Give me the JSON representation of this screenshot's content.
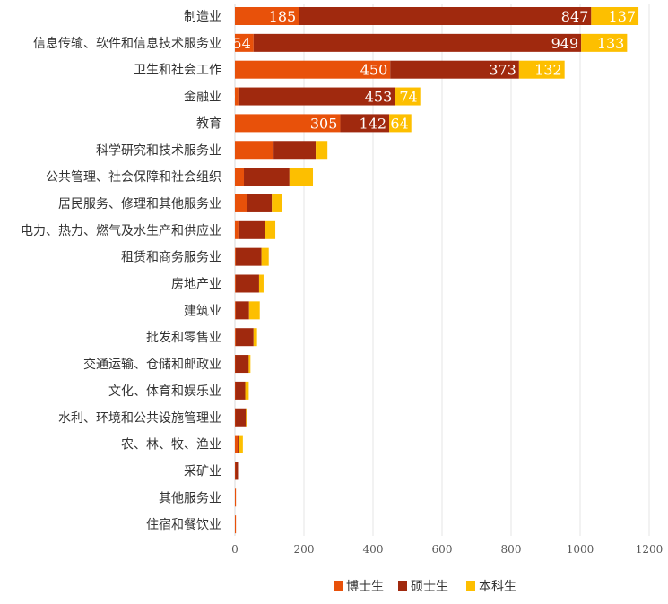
{
  "chart_data": {
    "type": "bar",
    "orientation": "horizontal",
    "stacked": true,
    "categories": [
      "制造业",
      "信息传输、软件和信息技术服务业",
      "卫生和社会工作",
      "金融业",
      "教育",
      "科学研究和技术服务业",
      "公共管理、社会保障和社会组织",
      "居民服务、修理和其他服务业",
      "电力、热力、燃气及水生产和供应业",
      "租赁和商务服务业",
      "房地产业",
      "建筑业",
      "批发和零售业",
      "交通运输、仓储和邮政业",
      "文化、体育和娱乐业",
      "水利、环境和公共设施管理业",
      "农、林、牧、渔业",
      "采矿业",
      "其他服务业",
      "住宿和餐饮业"
    ],
    "series": [
      {
        "name": "博士生",
        "color": "#e8510a",
        "values": [
          185,
          54,
          450,
          10,
          305,
          112,
          26,
          34,
          10,
          2,
          2,
          2,
          2,
          1,
          1,
          1,
          8,
          1,
          3,
          3
        ],
        "labels": [
          "185",
          "54",
          "450",
          "10",
          "305"
        ]
      },
      {
        "name": "硕士生",
        "color": "#a0290e",
        "values": [
          847,
          949,
          373,
          453,
          142,
          122,
          132,
          73,
          78,
          75,
          68,
          39,
          52,
          39,
          29,
          31,
          5,
          8,
          0,
          0
        ],
        "labels": [
          "847",
          "949",
          "373",
          "453",
          "142"
        ]
      },
      {
        "name": "本科生",
        "color": "#fdbf00",
        "values": [
          137,
          133,
          132,
          74,
          64,
          34,
          68,
          29,
          29,
          21,
          13,
          31,
          10,
          5,
          10,
          2,
          10,
          0,
          0,
          0
        ],
        "labels": [
          "137",
          "133",
          "132",
          "74",
          "64"
        ]
      }
    ],
    "xlim": [
      0,
      1200
    ],
    "xticks": [
      "0",
      "200",
      "400",
      "600",
      "800",
      "1000",
      "1200"
    ],
    "grid": true,
    "legend_position": "bottom"
  }
}
